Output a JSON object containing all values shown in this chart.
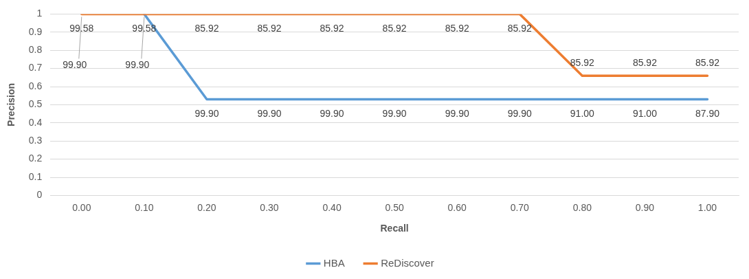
{
  "chart_data": {
    "type": "line",
    "xlabel": "Recall",
    "ylabel": "Precision",
    "categories": [
      "0.00",
      "0.10",
      "0.20",
      "0.30",
      "0.40",
      "0.50",
      "0.60",
      "0.70",
      "0.80",
      "0.90",
      "1.00"
    ],
    "series": [
      {
        "name": "HBA",
        "color": "#5b9bd5",
        "values": [
          null,
          1,
          0.53,
          0.53,
          0.53,
          0.53,
          0.53,
          0.53,
          0.53,
          0.53,
          0.53
        ]
      },
      {
        "name": "ReDiscover",
        "color": "#ed7d31",
        "values": [
          1,
          1,
          1,
          1,
          1,
          1,
          1,
          1,
          0.66,
          0.66,
          0.66
        ]
      }
    ],
    "annotations": [
      {
        "text": "99.58",
        "x": "0.00",
        "y": 1
      },
      {
        "text": "99.90",
        "x": "0.00",
        "y": 1
      },
      {
        "text": "99.58",
        "x": "0.10",
        "y": 1
      },
      {
        "text": "99.90",
        "x": "0.10",
        "y": 1
      },
      {
        "text": "85.92",
        "x": "0.20",
        "y": 1
      },
      {
        "text": "99.90",
        "x": "0.20",
        "y": 0.53
      },
      {
        "text": "85.92",
        "x": "0.30",
        "y": 1
      },
      {
        "text": "99.90",
        "x": "0.30",
        "y": 0.53
      },
      {
        "text": "85.92",
        "x": "0.40",
        "y": 1
      },
      {
        "text": "99.90",
        "x": "0.40",
        "y": 0.53
      },
      {
        "text": "85.92",
        "x": "0.50",
        "y": 1
      },
      {
        "text": "99.90",
        "x": "0.50",
        "y": 0.53
      },
      {
        "text": "85.92",
        "x": "0.60",
        "y": 1
      },
      {
        "text": "99.90",
        "x": "0.60",
        "y": 0.53
      },
      {
        "text": "85.92",
        "x": "0.70",
        "y": 1
      },
      {
        "text": "99.90",
        "x": "0.70",
        "y": 0.53
      },
      {
        "text": "85.92",
        "x": "0.80",
        "y": 0.66
      },
      {
        "text": "91.00",
        "x": "0.80",
        "y": 0.53
      },
      {
        "text": "85.92",
        "x": "0.90",
        "y": 0.66
      },
      {
        "text": "91.00",
        "x": "0.90",
        "y": 0.53
      },
      {
        "text": "85.92",
        "x": "1.00",
        "y": 0.66
      },
      {
        "text": "87.90",
        "x": "1.00",
        "y": 0.53
      }
    ],
    "ylim": [
      0,
      1
    ],
    "yticks": [
      0,
      0.1,
      0.2,
      0.3,
      0.4,
      0.5,
      0.6,
      0.7,
      0.8,
      0.9,
      1
    ],
    "grid": "y",
    "legend": "bottom",
    "marker": "none",
    "line_style": "solid"
  }
}
